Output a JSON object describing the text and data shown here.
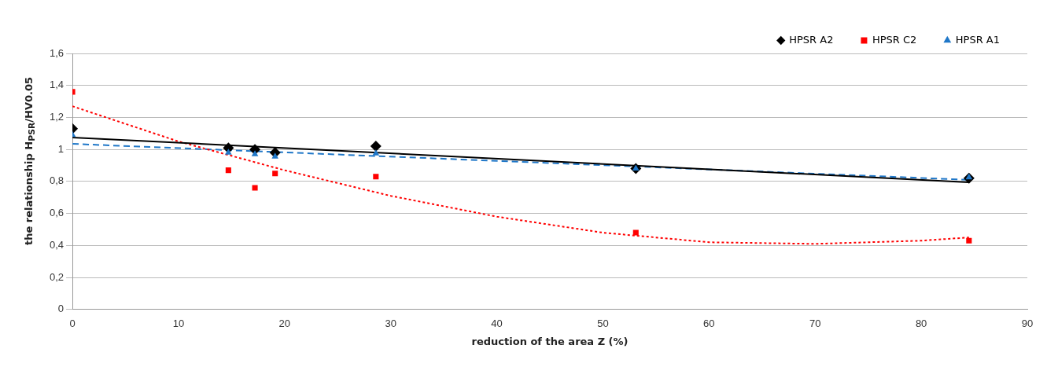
{
  "chart_data": {
    "type": "scatter",
    "xlabel": "reduction of the area Z (%)",
    "ylabel": "the relationship H$_{PSR}$/HV0.05",
    "xlim": [
      0,
      90
    ],
    "xticks": [
      0,
      10,
      20,
      30,
      40,
      50,
      60,
      70,
      80,
      90
    ],
    "ylim": [
      0,
      1.6
    ],
    "yticks": [
      0,
      {
        "value": 0.2,
        "label": "0,2"
      },
      {
        "value": 0.4,
        "label": "0,4"
      },
      {
        "value": 0.6,
        "label": "0,6"
      },
      {
        "value": 0.8,
        "label": "0,8"
      },
      1,
      {
        "value": 1.2,
        "label": "1,2"
      },
      {
        "value": 1.4,
        "label": "1,4"
      },
      {
        "value": 1.6,
        "label": "1,6"
      }
    ],
    "grid": "y",
    "legend": "top right",
    "series": [
      {
        "name": "HPSR A2",
        "marker": "diamond",
        "color": "#000000",
        "x": [
          0,
          14.7,
          17.2,
          19.1,
          28.6,
          53.1,
          84.5
        ],
        "values": [
          1.13,
          1.01,
          1.0,
          0.98,
          1.02,
          0.88,
          0.82
        ]
      },
      {
        "name": "HPSR C2",
        "marker": "square",
        "color": "#ff0000",
        "x": [
          0,
          14.7,
          17.2,
          19.1,
          28.6,
          53.1,
          84.5
        ],
        "values": [
          1.36,
          0.87,
          0.76,
          0.85,
          0.83,
          0.48,
          0.43
        ]
      },
      {
        "name": "HPSR A1",
        "marker": "triangle",
        "color": "#1f77c8",
        "x": [
          0,
          14.7,
          17.2,
          19.1,
          28.6,
          53.1,
          84.5
        ],
        "values": [
          1.09,
          0.98,
          0.97,
          0.955,
          0.975,
          0.88,
          0.825
        ]
      },
      {
        "type": "line",
        "marker": "none",
        "line_style": "solid",
        "color": "#000000",
        "x": [
          0,
          84.5
        ],
        "values": [
          1.075,
          0.795
        ]
      },
      {
        "type": "line",
        "marker": "none",
        "line_style": "dotted",
        "color": "#ff0000",
        "x": [
          0,
          10,
          20,
          30,
          40,
          50,
          60,
          70,
          80,
          84.5
        ],
        "values": [
          1.27,
          1.05,
          0.87,
          0.71,
          0.58,
          0.48,
          0.42,
          0.41,
          0.43,
          0.45
        ]
      },
      {
        "type": "line",
        "marker": "none",
        "line_style": "dashed",
        "color": "#1f77c8",
        "x": [
          0,
          84.5
        ],
        "values": [
          1.035,
          0.81
        ]
      }
    ]
  }
}
